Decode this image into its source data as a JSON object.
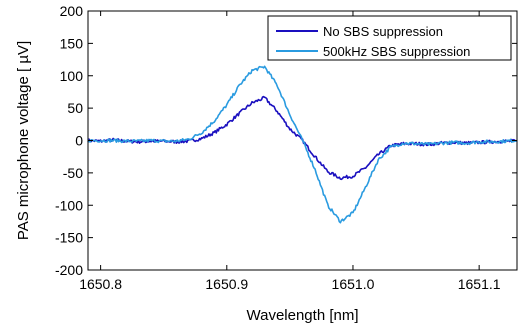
{
  "chart_data": {
    "type": "line",
    "title": "",
    "xlabel": "Wavelength [nm]",
    "ylabel": "PAS microphone voltage [ µV]",
    "xlim": [
      1650.79,
      1651.13
    ],
    "ylim": [
      -200,
      200
    ],
    "xticks": [
      1650.8,
      1650.9,
      1651.0,
      1651.1
    ],
    "xtick_labels": [
      "1650.8",
      "1650.9",
      "1651.0",
      "1651.1"
    ],
    "yticks": [
      -200,
      -150,
      -100,
      -50,
      0,
      50,
      100,
      150,
      200
    ],
    "ytick_labels": [
      "-200",
      "-150",
      "-100",
      "-50",
      "0",
      "50",
      "100",
      "150",
      "200"
    ],
    "grid": false,
    "legend_position": "top-right",
    "series": [
      {
        "name": "No SBS suppression",
        "color": "#1a0fbf",
        "x": [
          1650.79,
          1650.8,
          1650.81,
          1650.82,
          1650.83,
          1650.84,
          1650.85,
          1650.86,
          1650.87,
          1650.88,
          1650.89,
          1650.9,
          1650.91,
          1650.92,
          1650.93,
          1650.94,
          1650.95,
          1650.96,
          1650.97,
          1650.98,
          1650.99,
          1651.0,
          1651.01,
          1651.02,
          1651.03,
          1651.04,
          1651.05,
          1651.06,
          1651.07,
          1651.08,
          1651.09,
          1651.1,
          1651.11,
          1651.12,
          1651.13
        ],
        "y": [
          0,
          -1,
          1,
          -1,
          -2,
          -1,
          -1,
          -2,
          -1,
          3,
          12,
          25,
          42,
          58,
          66,
          45,
          18,
          0,
          -25,
          -48,
          -58,
          -55,
          -42,
          -22,
          -8,
          -5,
          -5,
          -6,
          -4,
          -3,
          -4,
          -3,
          -2,
          -1,
          -1
        ]
      },
      {
        "name": "500kHz SBS suppression",
        "color": "#2a9be0",
        "x": [
          1650.79,
          1650.8,
          1650.81,
          1650.82,
          1650.83,
          1650.84,
          1650.85,
          1650.86,
          1650.87,
          1650.88,
          1650.89,
          1650.9,
          1650.91,
          1650.92,
          1650.93,
          1650.94,
          1650.95,
          1650.96,
          1650.97,
          1650.98,
          1650.99,
          1651.0,
          1651.01,
          1651.02,
          1651.03,
          1651.04,
          1651.05,
          1651.06,
          1651.07,
          1651.08,
          1651.09,
          1651.1,
          1651.11,
          1651.12,
          1651.13
        ],
        "y": [
          0,
          0,
          0,
          -1,
          -1,
          0,
          -1,
          -1,
          2,
          12,
          30,
          55,
          85,
          108,
          114,
          85,
          40,
          0,
          -45,
          -100,
          -125,
          -112,
          -72,
          -30,
          -10,
          -4,
          -5,
          -6,
          -4,
          -3,
          -4,
          -2,
          -2,
          -1,
          0
        ]
      }
    ]
  }
}
